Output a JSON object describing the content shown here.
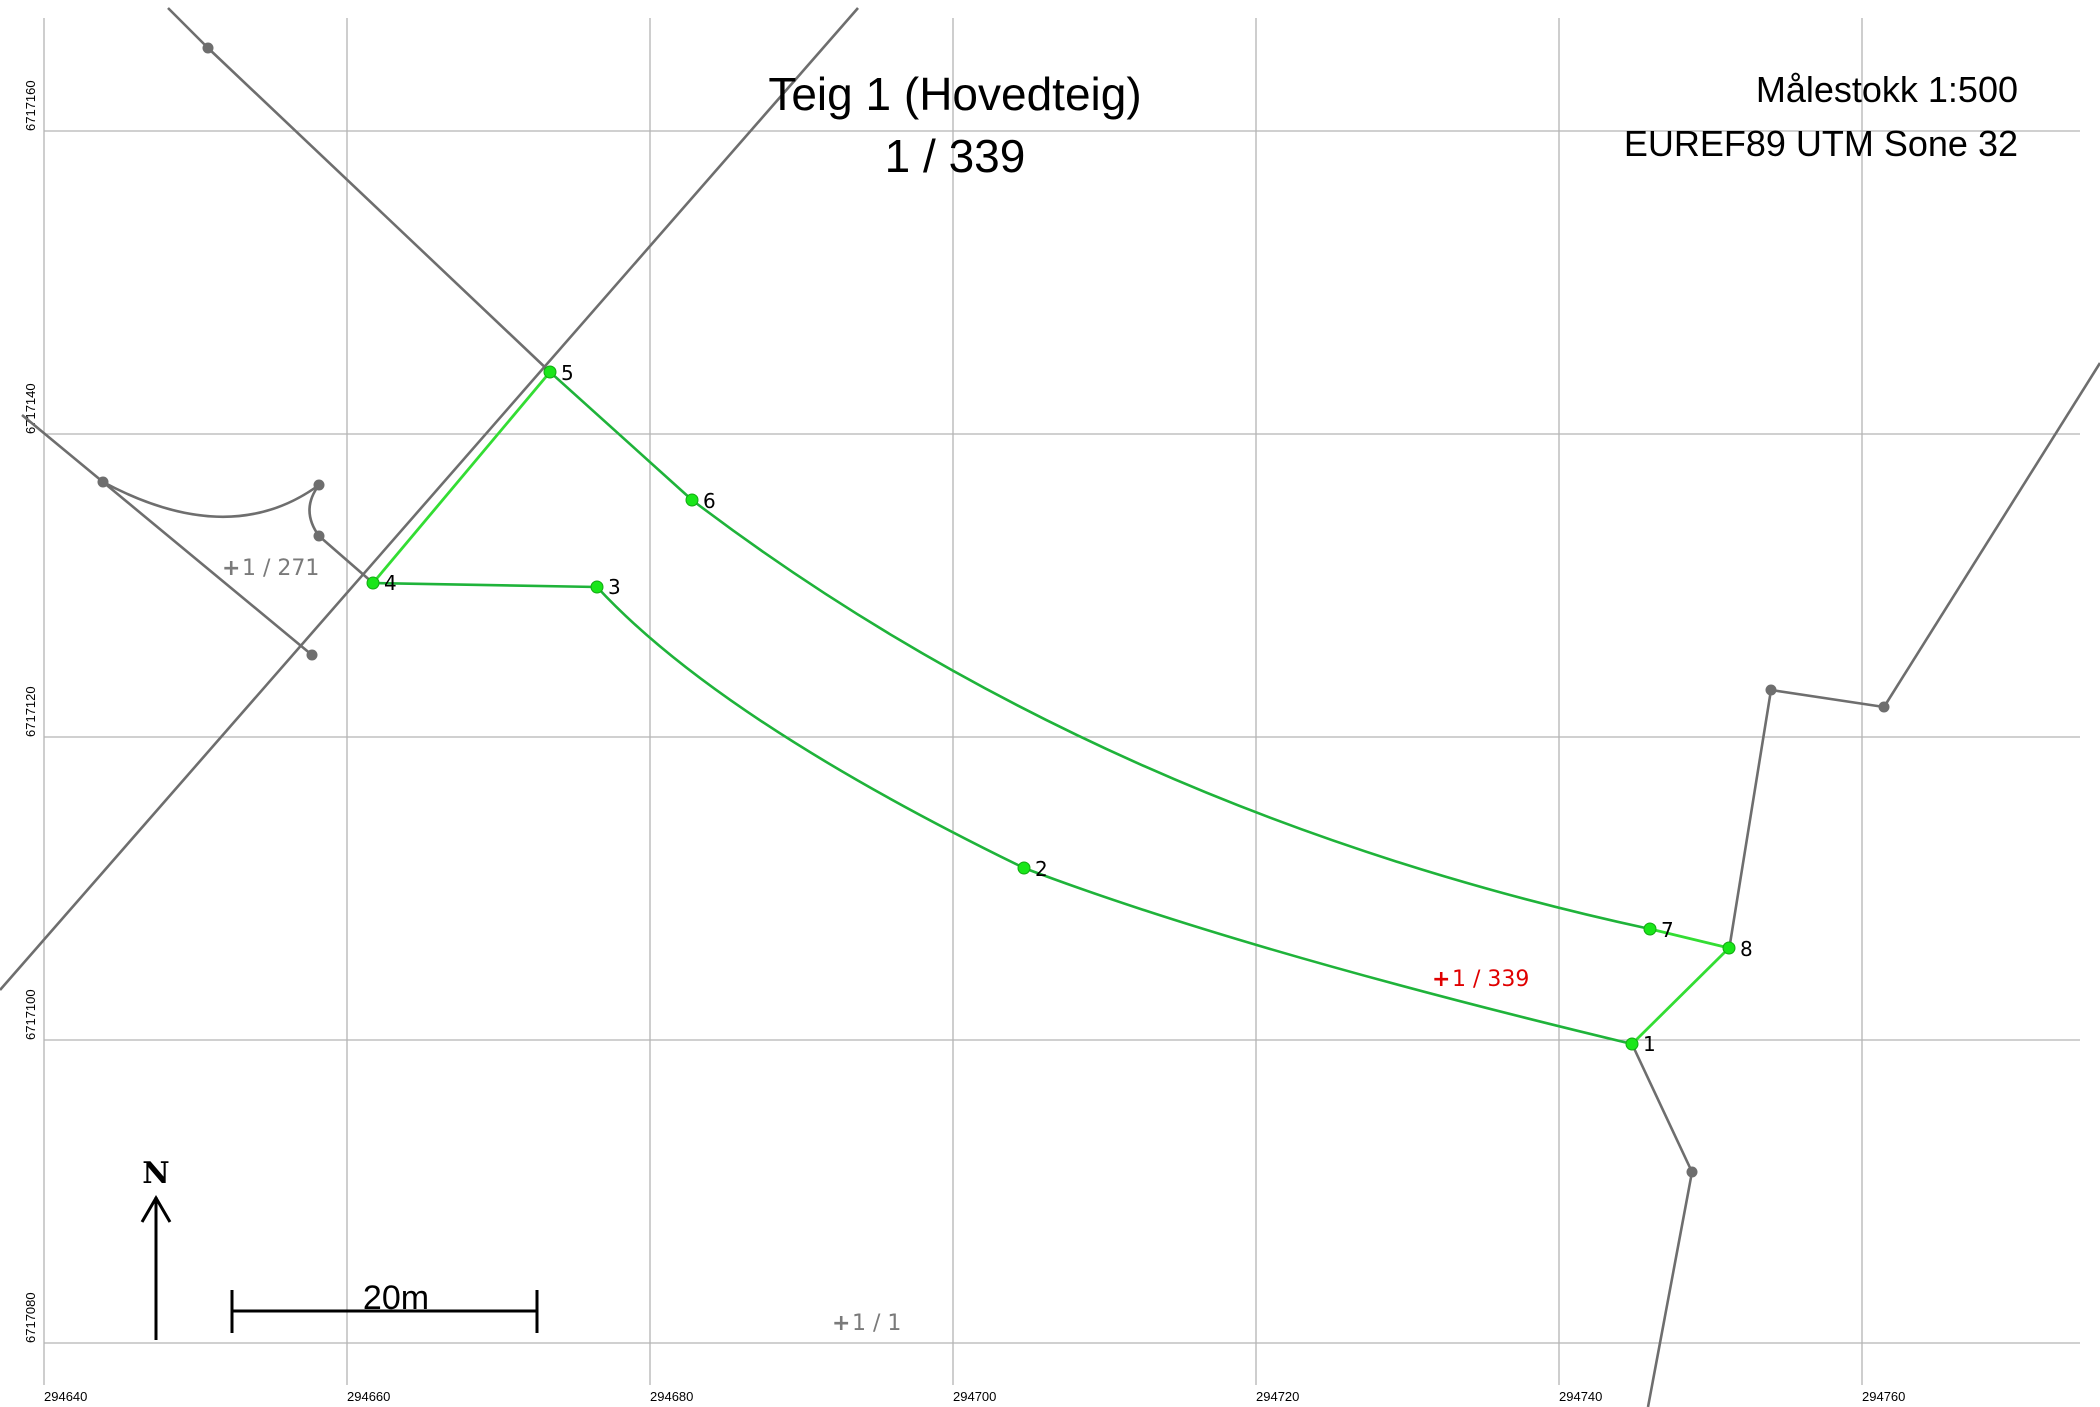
{
  "map": {
    "title": "Teig 1 (Hovedteig)",
    "parcel_id": "1 / 339",
    "scale": "Målestokk 1:500",
    "crs": "EUREF89 UTM Sone 32",
    "north_label": "N",
    "scalebar_label": "20m"
  },
  "x_ticks": [
    "294640",
    "294660",
    "294680",
    "294700",
    "294720",
    "294740",
    "294760"
  ],
  "y_ticks": [
    "6717160",
    "6717140",
    "6717120",
    "6717100",
    "6717080"
  ],
  "boundary_points": [
    {
      "id": "1",
      "label": "1",
      "easting": 294744.3,
      "northing": 6717099.8
    },
    {
      "id": "2",
      "label": "2",
      "easting": 294704.2,
      "northing": 6717111.5
    },
    {
      "id": "3",
      "label": "3",
      "easting": 294675.9,
      "northing": 6717130.1
    },
    {
      "id": "4",
      "label": "4",
      "easting": 294661.1,
      "northing": 6717130.4
    },
    {
      "id": "5",
      "label": "5",
      "easting": 294672.6,
      "northing": 6717144.2
    },
    {
      "id": "6",
      "label": "6",
      "easting": 294682.1,
      "northing": 6717135.7
    },
    {
      "id": "7",
      "label": "7",
      "easting": 294745.6,
      "northing": 6717107.4
    },
    {
      "id": "8",
      "label": "8",
      "easting": 294750.9,
      "northing": 6717106.1
    }
  ],
  "parcel_labels": [
    {
      "id": "main",
      "text": "1 / 339",
      "color": "#e00000",
      "easting": 294732.0,
      "northing": 6717104.1
    },
    {
      "id": "neighbor-271",
      "text": "1 / 271",
      "color": "#7a7a7a",
      "easting": 294652.8,
      "northing": 6717131.5
    },
    {
      "id": "neighbor-1",
      "text": "1 / 1",
      "color": "#7a7a7a",
      "easting": 294692.8,
      "northing": 6717081.4
    }
  ],
  "colors": {
    "boundary": "#1fb33a",
    "vertex": "#19e619",
    "neighbor_lines": "#6e6e6e",
    "grid": "#b4b4b4",
    "main_label": "#e00000",
    "neighbor_label": "#7a7a7a"
  }
}
